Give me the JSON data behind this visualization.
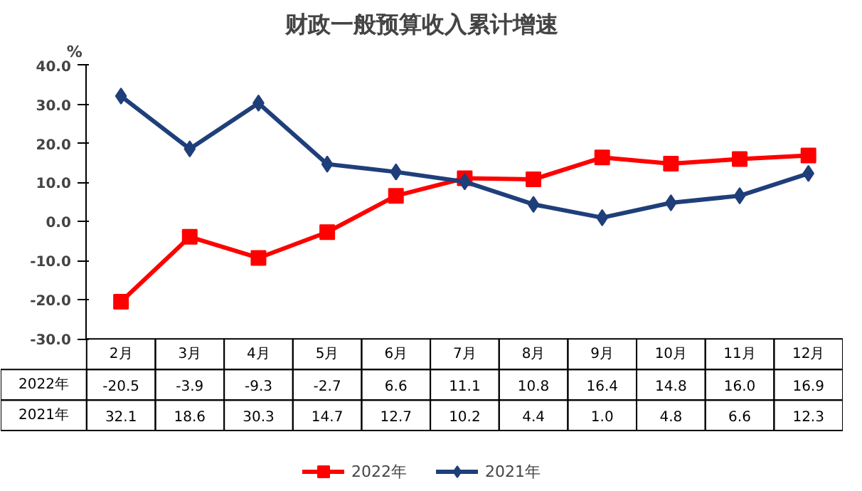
{
  "chart_data": {
    "type": "line",
    "title": "财政一般预算收入累计增速",
    "ylabel": "%",
    "categories": [
      "2月",
      "3月",
      "4月",
      "5月",
      "6月",
      "7月",
      "8月",
      "9月",
      "10月",
      "11月",
      "12月"
    ],
    "series": [
      {
        "name": "2022年",
        "color": "#ff0000",
        "marker": "square",
        "values": [
          -20.5,
          -3.9,
          -9.3,
          -2.7,
          6.6,
          11.1,
          10.8,
          16.4,
          14.8,
          16.0,
          16.9
        ],
        "value_labels": [
          "-20.5",
          "-3.9",
          "-9.3",
          "-2.7",
          "6.6",
          "11.1",
          "10.8",
          "16.4",
          "14.8",
          "16.0",
          "16.9"
        ]
      },
      {
        "name": "2021年",
        "color": "#1f3f7a",
        "marker": "diamond",
        "values": [
          32.1,
          18.6,
          30.3,
          14.7,
          12.7,
          10.2,
          4.4,
          1.0,
          4.8,
          6.6,
          12.3
        ],
        "value_labels": [
          "32.1",
          "18.6",
          "30.3",
          "14.7",
          "12.7",
          "10.2",
          "4.4",
          "1.0",
          "4.8",
          "6.6",
          "12.3"
        ]
      }
    ],
    "ylim": [
      -30,
      40
    ],
    "yticks": [
      {
        "value": -30,
        "label": "-30.0"
      },
      {
        "value": -20,
        "label": "-20.0"
      },
      {
        "value": -10,
        "label": "-10.0"
      },
      {
        "value": 0,
        "label": "0.0"
      },
      {
        "value": 10,
        "label": "10.0"
      },
      {
        "value": 20,
        "label": "20.0"
      },
      {
        "value": 30,
        "label": "30.0"
      },
      {
        "value": 40,
        "label": "40.0"
      }
    ],
    "grid": false,
    "legend": "bottom"
  }
}
